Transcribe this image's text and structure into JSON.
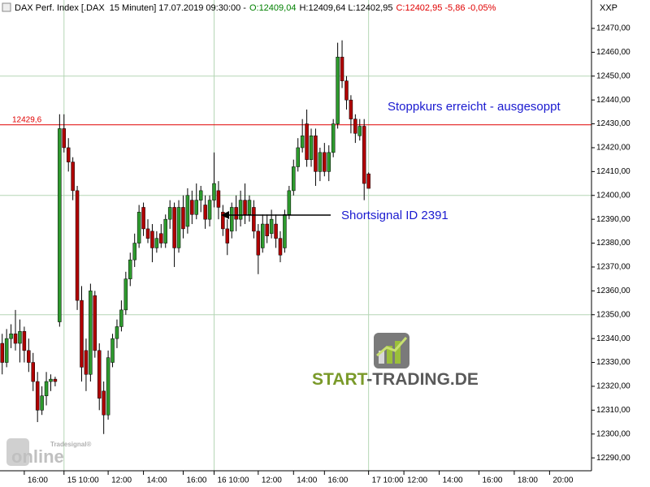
{
  "header": [
    {
      "text": "DAX Perf. Index [.DAX  15 Minuten] 17.07.2019 09:30:00 -",
      "color": "#000000"
    },
    {
      "text": "O:12409,04",
      "color": "#008000"
    },
    {
      "text": "H:12409,64 L:12402,95",
      "color": "#000000"
    },
    {
      "text": "C:12402,95 -5,86 -0,05%",
      "color": "#e00000"
    }
  ],
  "axis_symbol": "XXP",
  "branding": {
    "watermark_a": "START",
    "watermark_b": "-TRADING.DE",
    "logo_small": "Tradesignal®",
    "logo_big": "online"
  },
  "chart_data": {
    "type": "candlestick",
    "up_color": "#2e9a2e",
    "down_color": "#b00000",
    "open": [
      12338,
      12330,
      12340,
      12342,
      12338,
      12343,
      12335,
      12330,
      12322,
      12310,
      12316,
      12322,
      12323,
      12347,
      12428,
      12420,
      12414,
      12402,
      12356,
      12335,
      12325,
      12358,
      12335,
      12318,
      12308,
      12330,
      12340,
      12345,
      12352,
      12365,
      12373,
      12380,
      12395,
      12386,
      12385,
      12378,
      12384,
      12380,
      12390,
      12395,
      12378,
      12395,
      12387,
      12398,
      12392,
      12398,
      12396,
      12390,
      12398,
      12402,
      12393,
      12386,
      12385,
      12395,
      12390,
      12398,
      12392,
      12395,
      12385,
      12378,
      12388,
      12384,
      12388,
      12382,
      12378,
      12392,
      12402,
      12412,
      12420,
      12430,
      12415,
      12425,
      12410,
      12418,
      12410,
      12418,
      12430,
      12458,
      12448,
      12440,
      12432,
      12425,
      12429,
      12409.04
    ],
    "high": [
      12342,
      12344,
      12346,
      12352,
      12348,
      12345,
      12340,
      12334,
      12326,
      12320,
      12326,
      12325,
      12324,
      12434,
      12434,
      12424,
      12416,
      12404,
      12362,
      12340,
      12363,
      12360,
      12338,
      12322,
      12335,
      12342,
      12348,
      12356,
      12368,
      12376,
      12384,
      12396,
      12397,
      12390,
      12388,
      12385,
      12388,
      12392,
      12398,
      12397,
      12398,
      12400,
      12403,
      12402,
      12405,
      12404,
      12400,
      12400,
      12418,
      12406,
      12396,
      12390,
      12397,
      12400,
      12402,
      12405,
      12400,
      12398,
      12388,
      12392,
      12392,
      12394,
      12392,
      12385,
      12394,
      12404,
      12415,
      12424,
      12432,
      12436,
      12428,
      12428,
      12420,
      12422,
      12421,
      12432,
      12464,
      12465,
      12450,
      12442,
      12434,
      12432,
      12432,
      12409.64
    ],
    "low": [
      12325,
      12328,
      12336,
      12335,
      12330,
      12330,
      12326,
      12318,
      12305,
      12308,
      12312,
      12318,
      12320,
      12345,
      12418,
      12410,
      12398,
      12352,
      12322,
      12318,
      12322,
      12332,
      12310,
      12300,
      12306,
      12328,
      12336,
      12343,
      12350,
      12362,
      12370,
      12378,
      12383,
      12380,
      12372,
      12376,
      12378,
      12378,
      12386,
      12370,
      12376,
      12382,
      12384,
      12388,
      12390,
      12393,
      12386,
      12387,
      12395,
      12390,
      12383,
      12375,
      12382,
      12385,
      12387,
      12388,
      12389,
      12382,
      12367,
      12376,
      12380,
      12382,
      12378,
      12372,
      12376,
      12390,
      12400,
      12410,
      12418,
      12412,
      12412,
      12404,
      12406,
      12408,
      12406,
      12416,
      12428,
      12445,
      12436,
      12426,
      12422,
      12423,
      12398,
      12402.95
    ],
    "close": [
      12330,
      12340,
      12342,
      12338,
      12343,
      12335,
      12330,
      12322,
      12310,
      12316,
      12322,
      12323,
      12322,
      12428,
      12420,
      12414,
      12402,
      12356,
      12328,
      12325,
      12360,
      12335,
      12315,
      12308,
      12332,
      12340,
      12345,
      12352,
      12365,
      12373,
      12380,
      12393,
      12386,
      12382,
      12378,
      12382,
      12380,
      12390,
      12395,
      12378,
      12395,
      12386,
      12400,
      12392,
      12398,
      12402,
      12390,
      12398,
      12405,
      12395,
      12386,
      12380,
      12395,
      12390,
      12398,
      12392,
      12398,
      12385,
      12375,
      12388,
      12383,
      12390,
      12382,
      12375,
      12392,
      12402,
      12412,
      12420,
      12425,
      12415,
      12425,
      12410,
      12418,
      12410,
      12418,
      12430,
      12458,
      12448,
      12440,
      12432,
      12426,
      12429,
      12405,
      12402.95
    ],
    "xlim": [
      -0.5,
      133.5
    ],
    "xticks": [
      {
        "value": 5,
        "label": "16:00"
      },
      {
        "value": 14,
        "label": "15 10:00"
      },
      {
        "value": 24,
        "label": "12:00"
      },
      {
        "value": 32,
        "label": "14:00"
      },
      {
        "value": 41,
        "label": "16:00"
      },
      {
        "value": 48,
        "label": "16 10:00"
      },
      {
        "value": 58,
        "label": "12:00"
      },
      {
        "value": 66,
        "label": "14:00"
      },
      {
        "value": 73,
        "label": "16:00"
      },
      {
        "value": 83,
        "label": "17 10:00"
      },
      {
        "value": 91,
        "label": "12:00"
      },
      {
        "value": 99,
        "label": "14:00"
      },
      {
        "value": 108,
        "label": "16:00"
      },
      {
        "value": 116,
        "label": "18:00"
      },
      {
        "value": 124,
        "label": "20:00"
      }
    ],
    "ylim": [
      12284.6,
      12481.9
    ],
    "yticks": [
      {
        "value": 12290,
        "label": "12290,00"
      },
      {
        "value": 12300,
        "label": "12300,00"
      },
      {
        "value": 12310,
        "label": "12310,00"
      },
      {
        "value": 12320,
        "label": "12320,00"
      },
      {
        "value": 12330,
        "label": "12330,00"
      },
      {
        "value": 12340,
        "label": "12340,00"
      },
      {
        "value": 12350,
        "label": "12350,00"
      },
      {
        "value": 12360,
        "label": "12360,00"
      },
      {
        "value": 12370,
        "label": "12370,00"
      },
      {
        "value": 12380,
        "label": "12380,00"
      },
      {
        "value": 12390,
        "label": "12390,00"
      },
      {
        "value": 12400,
        "label": "12400,00"
      },
      {
        "value": 12410,
        "label": "12410,00"
      },
      {
        "value": 12420,
        "label": "12420,00"
      },
      {
        "value": 12430,
        "label": "12430,00"
      },
      {
        "value": 12440,
        "label": "12440,00"
      },
      {
        "value": 12450,
        "label": "12450,00"
      },
      {
        "value": 12460,
        "label": "12460,00"
      },
      {
        "value": 12470,
        "label": "12470,00"
      }
    ],
    "grid_y": [
      12350,
      12400,
      12450
    ],
    "grid_x": [
      14,
      48,
      83
    ],
    "ref_line": {
      "value": 12429.6,
      "label": "12429,6",
      "color": "#e00000"
    },
    "annotations": [
      "Stoppkurs erreicht - ausgesoppt",
      "Shortsignal ID 2391"
    ],
    "annotation_color": "#1a1ad0"
  }
}
